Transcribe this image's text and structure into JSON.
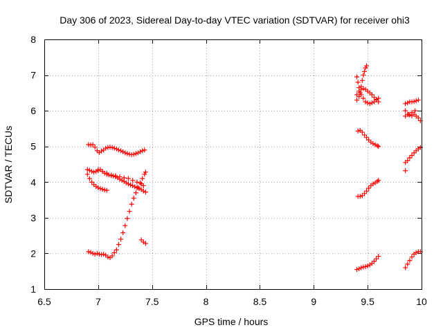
{
  "chart_data": {
    "type": "scatter",
    "title": "Day 306 of 2023, Sidereal Day-to-day VTEC variation (SDTVAR) for receiver ohi3",
    "xlabel": "GPS time / hours",
    "ylabel": "SDTVAR / TECUs",
    "xlim": [
      6.5,
      10
    ],
    "ylim": [
      1,
      8
    ],
    "xticks": [
      "6.5",
      "7",
      "7.5",
      "8",
      "8.5",
      "9",
      "9.5",
      "10"
    ],
    "yticks": [
      "1",
      "2",
      "3",
      "4",
      "5",
      "6",
      "7",
      "8"
    ],
    "grid": true,
    "marker": "+",
    "color": "#ff0000",
    "series": [
      {
        "name": "s1",
        "points": [
          [
            6.91,
            5.05
          ],
          [
            6.93,
            5.04
          ],
          [
            6.95,
            5.05
          ],
          [
            6.97,
            4.98
          ],
          [
            6.99,
            4.88
          ],
          [
            7.01,
            4.83
          ],
          [
            7.03,
            4.87
          ],
          [
            7.05,
            4.9
          ],
          [
            7.07,
            4.95
          ],
          [
            7.09,
            4.97
          ],
          [
            7.11,
            4.98
          ],
          [
            7.13,
            4.97
          ],
          [
            7.15,
            4.95
          ],
          [
            7.17,
            4.93
          ],
          [
            7.19,
            4.9
          ],
          [
            7.21,
            4.88
          ],
          [
            7.23,
            4.85
          ],
          [
            7.25,
            4.82
          ],
          [
            7.27,
            4.8
          ],
          [
            7.29,
            4.78
          ],
          [
            7.31,
            4.77
          ],
          [
            7.33,
            4.78
          ],
          [
            7.35,
            4.8
          ],
          [
            7.37,
            4.82
          ],
          [
            7.39,
            4.85
          ],
          [
            7.41,
            4.88
          ],
          [
            7.43,
            4.9
          ]
        ]
      },
      {
        "name": "s2",
        "points": [
          [
            6.9,
            4.35
          ],
          [
            6.92,
            4.33
          ],
          [
            6.94,
            4.3
          ],
          [
            6.96,
            4.28
          ],
          [
            6.98,
            4.3
          ],
          [
            7.0,
            4.32
          ],
          [
            7.02,
            4.35
          ],
          [
            7.04,
            4.3
          ],
          [
            7.06,
            4.25
          ],
          [
            7.08,
            4.22
          ],
          [
            7.1,
            4.2
          ],
          [
            7.12,
            4.18
          ],
          [
            7.14,
            4.17
          ],
          [
            7.16,
            4.15
          ],
          [
            7.18,
            4.12
          ],
          [
            7.2,
            4.08
          ],
          [
            7.22,
            4.05
          ],
          [
            7.24,
            4.02
          ],
          [
            7.26,
            3.98
          ],
          [
            7.28,
            3.95
          ],
          [
            7.3,
            3.92
          ],
          [
            7.32,
            3.9
          ],
          [
            7.34,
            3.87
          ],
          [
            7.36,
            3.84
          ],
          [
            7.38,
            3.82
          ],
          [
            7.4,
            3.79
          ],
          [
            7.42,
            3.75
          ],
          [
            7.44,
            3.72
          ]
        ]
      },
      {
        "name": "s3",
        "points": [
          [
            6.9,
            4.22
          ],
          [
            6.92,
            4.1
          ],
          [
            6.94,
            4.0
          ],
          [
            6.96,
            3.93
          ],
          [
            6.98,
            3.88
          ],
          [
            7.0,
            3.84
          ],
          [
            7.02,
            3.82
          ],
          [
            7.04,
            3.8
          ],
          [
            7.06,
            3.78
          ],
          [
            7.08,
            3.77
          ]
        ]
      },
      {
        "name": "s4",
        "points": [
          [
            7.0,
            4.35
          ],
          [
            7.04,
            4.3
          ],
          [
            7.08,
            4.25
          ],
          [
            7.12,
            4.2
          ],
          [
            7.16,
            4.18
          ],
          [
            7.2,
            4.15
          ],
          [
            7.24,
            4.12
          ],
          [
            7.28,
            4.1
          ],
          [
            7.32,
            4.05
          ],
          [
            7.36,
            4.0
          ],
          [
            7.4,
            3.95
          ],
          [
            7.42,
            3.9
          ]
        ]
      },
      {
        "name": "s5",
        "points": [
          [
            6.91,
            2.05
          ],
          [
            6.93,
            2.03
          ],
          [
            6.95,
            2.0
          ],
          [
            6.97,
            1.98
          ],
          [
            6.99,
            2.0
          ],
          [
            7.01,
            1.98
          ],
          [
            7.03,
            1.97
          ],
          [
            7.05,
            1.98
          ],
          [
            7.07,
            1.95
          ],
          [
            7.09,
            1.9
          ],
          [
            7.11,
            1.88
          ],
          [
            7.13,
            1.93
          ],
          [
            7.15,
            2.02
          ],
          [
            7.17,
            2.1
          ],
          [
            7.19,
            2.25
          ],
          [
            7.21,
            2.4
          ],
          [
            7.23,
            2.58
          ],
          [
            7.25,
            2.78
          ],
          [
            7.27,
            2.98
          ],
          [
            7.29,
            3.18
          ],
          [
            7.31,
            3.38
          ],
          [
            7.33,
            3.55
          ],
          [
            7.35,
            3.7
          ],
          [
            7.37,
            3.85
          ],
          [
            7.39,
            3.98
          ],
          [
            7.41,
            4.1
          ],
          [
            7.43,
            4.22
          ],
          [
            7.44,
            4.28
          ]
        ]
      },
      {
        "name": "s6",
        "points": [
          [
            7.4,
            2.38
          ],
          [
            7.42,
            2.32
          ],
          [
            7.44,
            2.28
          ]
        ]
      },
      {
        "name": "s7",
        "points": [
          [
            9.4,
            6.95
          ],
          [
            9.41,
            6.8
          ],
          [
            9.42,
            6.65
          ],
          [
            9.43,
            6.5
          ],
          [
            9.44,
            6.68
          ],
          [
            9.45,
            6.85
          ],
          [
            9.46,
            7.0
          ],
          [
            9.47,
            7.1
          ],
          [
            9.48,
            7.2
          ],
          [
            9.49,
            7.26
          ]
        ]
      },
      {
        "name": "s8",
        "points": [
          [
            9.4,
            6.45
          ],
          [
            9.42,
            6.55
          ],
          [
            9.44,
            6.6
          ],
          [
            9.46,
            6.62
          ],
          [
            9.48,
            6.6
          ],
          [
            9.5,
            6.55
          ],
          [
            9.52,
            6.5
          ],
          [
            9.54,
            6.45
          ],
          [
            9.56,
            6.38
          ],
          [
            9.58,
            6.32
          ],
          [
            9.6,
            6.25
          ]
        ]
      },
      {
        "name": "s9",
        "points": [
          [
            9.4,
            6.3
          ],
          [
            9.42,
            6.4
          ],
          [
            9.44,
            6.45
          ],
          [
            9.46,
            6.35
          ],
          [
            9.48,
            6.25
          ],
          [
            9.5,
            6.22
          ],
          [
            9.52,
            6.2
          ],
          [
            9.54,
            6.22
          ],
          [
            9.56,
            6.25
          ],
          [
            9.58,
            6.3
          ],
          [
            9.6,
            6.35
          ]
        ]
      },
      {
        "name": "s10",
        "points": [
          [
            9.41,
            5.43
          ],
          [
            9.43,
            5.45
          ],
          [
            9.45,
            5.4
          ],
          [
            9.47,
            5.32
          ],
          [
            9.49,
            5.25
          ],
          [
            9.51,
            5.18
          ],
          [
            9.53,
            5.12
          ],
          [
            9.55,
            5.08
          ],
          [
            9.57,
            5.05
          ],
          [
            9.59,
            5.02
          ],
          [
            9.6,
            5.0
          ]
        ]
      },
      {
        "name": "s11",
        "points": [
          [
            9.41,
            3.6
          ],
          [
            9.43,
            3.6
          ],
          [
            9.45,
            3.62
          ],
          [
            9.47,
            3.68
          ],
          [
            9.49,
            3.75
          ],
          [
            9.51,
            3.83
          ],
          [
            9.53,
            3.9
          ],
          [
            9.55,
            3.95
          ],
          [
            9.57,
            3.98
          ],
          [
            9.59,
            4.02
          ],
          [
            9.6,
            4.05
          ]
        ]
      },
      {
        "name": "s12",
        "points": [
          [
            9.4,
            1.55
          ],
          [
            9.42,
            1.57
          ],
          [
            9.44,
            1.6
          ],
          [
            9.46,
            1.62
          ],
          [
            9.48,
            1.63
          ],
          [
            9.5,
            1.65
          ],
          [
            9.52,
            1.68
          ],
          [
            9.54,
            1.72
          ],
          [
            9.56,
            1.78
          ],
          [
            9.58,
            1.85
          ],
          [
            9.6,
            1.92
          ]
        ]
      },
      {
        "name": "s13",
        "points": [
          [
            9.85,
            6.2
          ],
          [
            9.87,
            6.22
          ],
          [
            9.89,
            6.25
          ],
          [
            9.91,
            6.25
          ],
          [
            9.93,
            6.26
          ],
          [
            9.95,
            6.28
          ],
          [
            9.97,
            6.3
          ]
        ]
      },
      {
        "name": "s14",
        "points": [
          [
            9.85,
            6.0
          ],
          [
            9.87,
            5.9
          ],
          [
            9.89,
            5.88
          ],
          [
            9.91,
            5.86
          ],
          [
            9.93,
            5.9
          ],
          [
            9.95,
            5.85
          ],
          [
            9.97,
            5.8
          ],
          [
            9.99,
            5.72
          ]
        ]
      },
      {
        "name": "s15",
        "points": [
          [
            9.85,
            5.85
          ],
          [
            9.88,
            5.9
          ],
          [
            9.91,
            5.95
          ],
          [
            9.94,
            6.0
          ]
        ]
      },
      {
        "name": "s16",
        "points": [
          [
            9.85,
            4.55
          ],
          [
            9.87,
            4.6
          ],
          [
            9.89,
            4.68
          ],
          [
            9.91,
            4.75
          ],
          [
            9.93,
            4.82
          ],
          [
            9.95,
            4.88
          ],
          [
            9.97,
            4.93
          ],
          [
            9.99,
            4.97
          ]
        ]
      },
      {
        "name": "s17",
        "points": [
          [
            9.85,
            4.32
          ]
        ]
      },
      {
        "name": "s18",
        "points": [
          [
            9.85,
            1.6
          ],
          [
            9.87,
            1.7
          ],
          [
            9.89,
            1.8
          ],
          [
            9.91,
            1.9
          ],
          [
            9.93,
            1.98
          ],
          [
            9.95,
            2.02
          ],
          [
            9.97,
            2.05
          ],
          [
            9.99,
            2.05
          ]
        ]
      }
    ]
  }
}
